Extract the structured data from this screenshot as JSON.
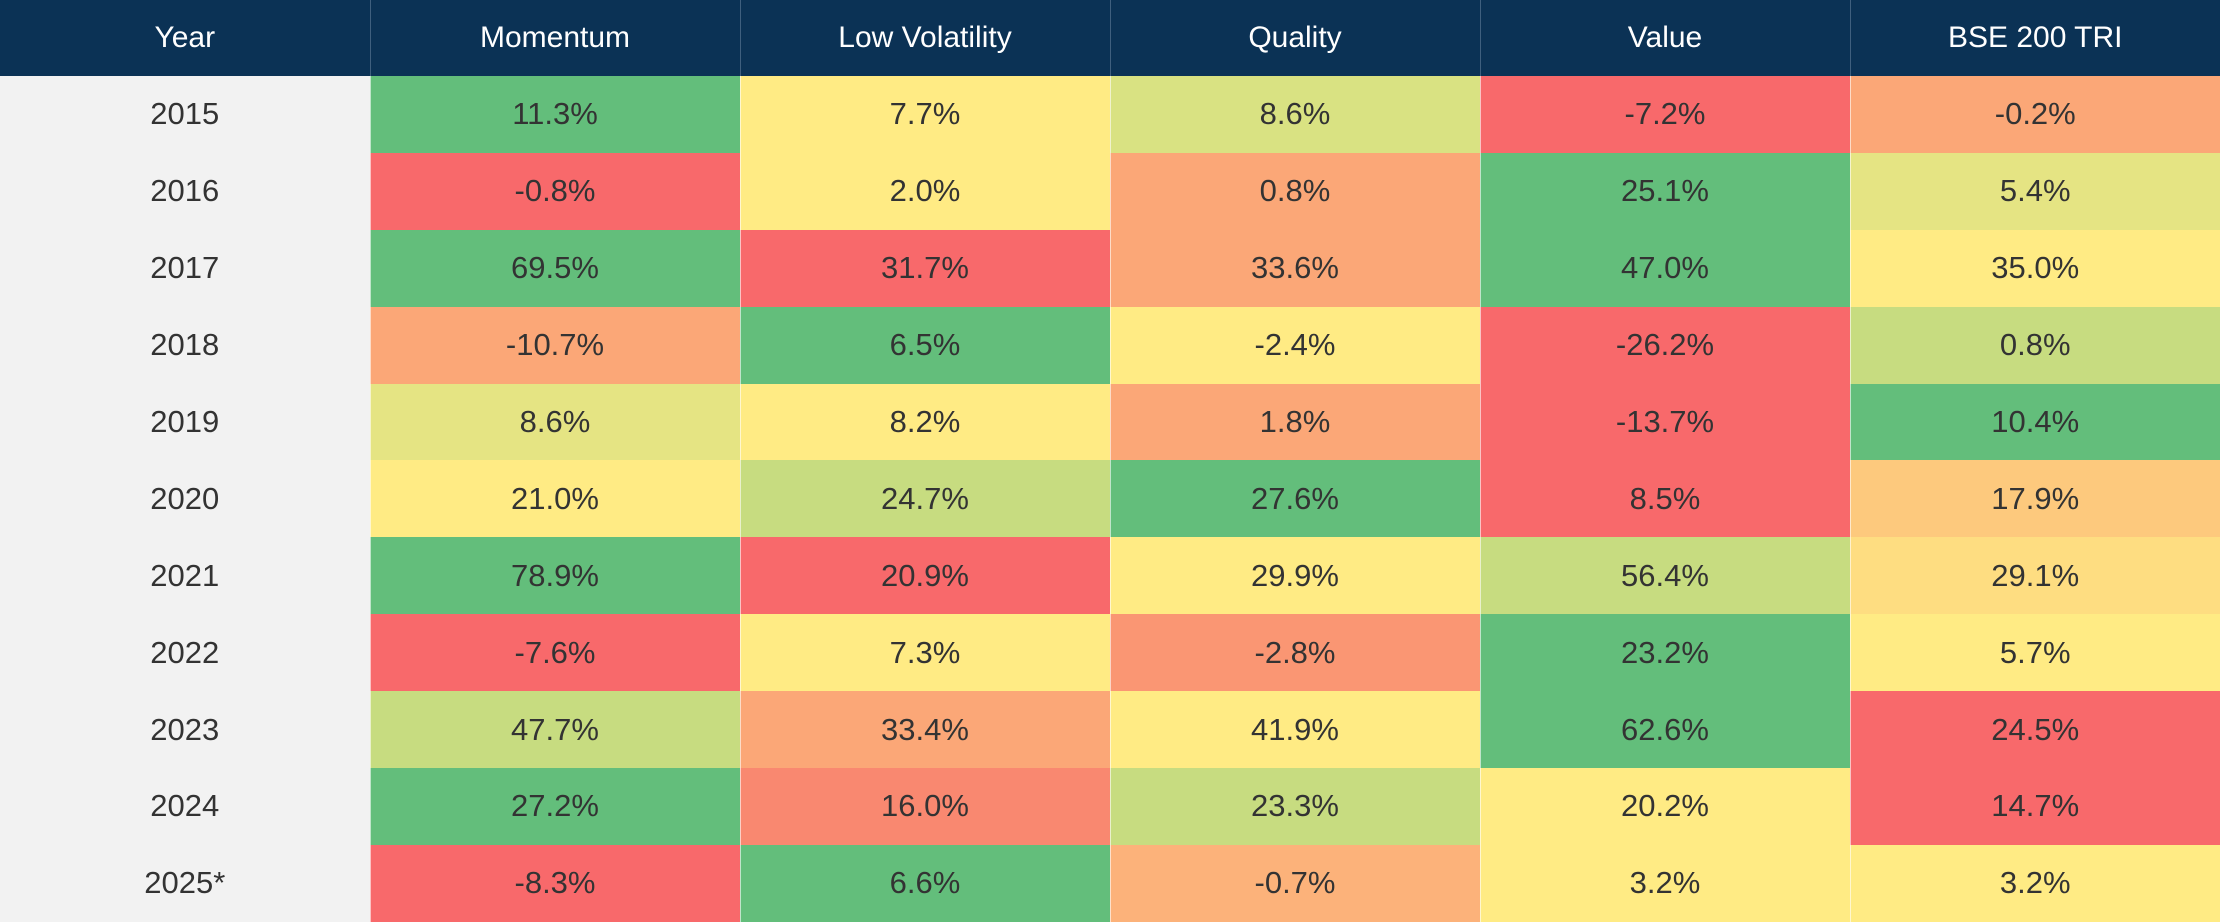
{
  "chart_data": {
    "type": "table",
    "columns": [
      "Year",
      "Momentum",
      "Low Volatility",
      "Quality",
      "Value",
      "BSE 200 TRI"
    ],
    "rows": [
      {
        "year": "2015",
        "values": [
          "11.3%",
          "7.7%",
          "8.6%",
          "-7.2%",
          "-0.2%"
        ],
        "colors": [
          "#63be7b",
          "#ffeb84",
          "#d9e282",
          "#f8696b",
          "#fba777"
        ]
      },
      {
        "year": "2016",
        "values": [
          "-0.8%",
          "2.0%",
          "0.8%",
          "25.1%",
          "5.4%"
        ],
        "colors": [
          "#f8696b",
          "#ffeb84",
          "#fba777",
          "#63be7b",
          "#e5e483"
        ]
      },
      {
        "year": "2017",
        "values": [
          "69.5%",
          "31.7%",
          "33.6%",
          "47.0%",
          "35.0%"
        ],
        "colors": [
          "#63be7b",
          "#f8696b",
          "#fba777",
          "#63be7b",
          "#ffeb84"
        ]
      },
      {
        "year": "2018",
        "values": [
          "-10.7%",
          "6.5%",
          "-2.4%",
          "-26.2%",
          "0.8%"
        ],
        "colors": [
          "#fba777",
          "#63be7b",
          "#ffeb84",
          "#f8696b",
          "#c7dc80"
        ]
      },
      {
        "year": "2019",
        "values": [
          "8.6%",
          "8.2%",
          "1.8%",
          "-13.7%",
          "10.4%"
        ],
        "colors": [
          "#e5e483",
          "#ffeb84",
          "#fba777",
          "#f8696b",
          "#63be7b"
        ]
      },
      {
        "year": "2020",
        "values": [
          "21.0%",
          "24.7%",
          "27.6%",
          "8.5%",
          "17.9%"
        ],
        "colors": [
          "#ffeb84",
          "#c7dc80",
          "#63be7b",
          "#f8696b",
          "#fdc97d"
        ]
      },
      {
        "year": "2021",
        "values": [
          "78.9%",
          "20.9%",
          "29.9%",
          "56.4%",
          "29.1%"
        ],
        "colors": [
          "#63be7b",
          "#f8696b",
          "#ffeb84",
          "#c7dc80",
          "#fedd81"
        ]
      },
      {
        "year": "2022",
        "values": [
          "-7.6%",
          "7.3%",
          "-2.8%",
          "23.2%",
          "5.7%"
        ],
        "colors": [
          "#f8696b",
          "#ffeb84",
          "#fa9673",
          "#63be7b",
          "#ffeb84"
        ]
      },
      {
        "year": "2023",
        "values": [
          "47.7%",
          "33.4%",
          "41.9%",
          "62.6%",
          "24.5%"
        ],
        "colors": [
          "#c7dc80",
          "#fba777",
          "#ffeb84",
          "#63be7b",
          "#f8696b"
        ]
      },
      {
        "year": "2024",
        "values": [
          "27.2%",
          "16.0%",
          "23.3%",
          "20.2%",
          "14.7%"
        ],
        "colors": [
          "#63be7b",
          "#f98870",
          "#c7dc80",
          "#ffeb84",
          "#f8696b"
        ]
      },
      {
        "year": "2025*",
        "values": [
          "-8.3%",
          "6.6%",
          "-0.7%",
          "3.2%",
          "3.2%"
        ],
        "colors": [
          "#f8696b",
          "#63be7b",
          "#fcb27a",
          "#ffeb84",
          "#ffeb84"
        ]
      }
    ]
  },
  "colors": {
    "header_background": "#0b3255",
    "header_text": "#ffffff",
    "year_column_background": "#f2f2f2",
    "cell_text": "#333333"
  }
}
